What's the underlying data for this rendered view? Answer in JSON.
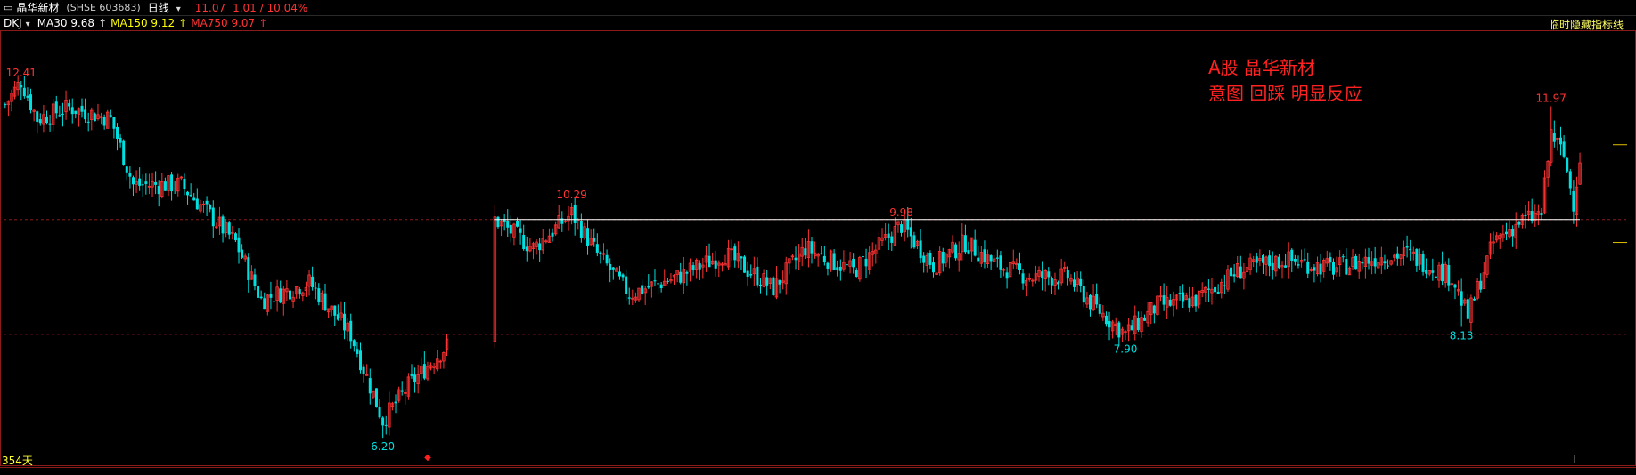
{
  "header": {
    "stock_name": "晶华新材",
    "code": "(SHSE 603683)",
    "period": "日线",
    "last_price": "11.07",
    "change": "1.01 / 10.04%"
  },
  "indicators": {
    "main": "DKJ",
    "ma30": "MA30 9.68",
    "ma150": "MA150 9.12",
    "ma750": "MA750 9.07",
    "hide_button": "临时隐藏指标线"
  },
  "annotation": {
    "line1": "A股 晶华新材",
    "line2": "意图 回踩 明显反应"
  },
  "footer": {
    "days": "354天"
  },
  "colors": {
    "up": "#ff3333",
    "down": "#00e0e0",
    "resistance": "#ffffff",
    "grid": "#8b1a1a"
  },
  "chart_data": {
    "type": "candlestick",
    "ylim": [
      5.8,
      13.2
    ],
    "dashed_levels": [
      10,
      8
    ],
    "resistance_level": 10,
    "price_labels": [
      {
        "label": "12.41",
        "bar": 5,
        "value": 12.41,
        "type": "high"
      },
      {
        "label": "6.20",
        "bar": 118,
        "value": 6.2,
        "type": "low"
      },
      {
        "label": "10.29",
        "bar": 177,
        "value": 10.29,
        "type": "high"
      },
      {
        "label": "9.98",
        "bar": 280,
        "value": 9.98,
        "type": "high"
      },
      {
        "label": "7.90",
        "bar": 350,
        "value": 7.9,
        "type": "low"
      },
      {
        "label": "8.13",
        "bar": 455,
        "value": 8.13,
        "type": "low"
      },
      {
        "label": "11.97",
        "bar": 483,
        "value": 11.97,
        "type": "high"
      }
    ],
    "anchors": [
      [
        0,
        12.0
      ],
      [
        5,
        12.41
      ],
      [
        10,
        11.75
      ],
      [
        20,
        11.95
      ],
      [
        33,
        11.75
      ],
      [
        40,
        10.6
      ],
      [
        55,
        10.6
      ],
      [
        72,
        9.6
      ],
      [
        80,
        8.6
      ],
      [
        95,
        8.9
      ],
      [
        108,
        8.0
      ],
      [
        118,
        6.5
      ],
      [
        126,
        7.1
      ],
      [
        138,
        7.8
      ],
      [
        145,
        8.6
      ],
      [
        150,
        8.0
      ],
      [
        153,
        10.0
      ],
      [
        165,
        9.5
      ],
      [
        177,
        10.1
      ],
      [
        185,
        9.4
      ],
      [
        195,
        8.7
      ],
      [
        210,
        9.0
      ],
      [
        225,
        9.4
      ],
      [
        240,
        8.8
      ],
      [
        250,
        9.5
      ],
      [
        265,
        9.1
      ],
      [
        280,
        9.9
      ],
      [
        290,
        9.2
      ],
      [
        300,
        9.6
      ],
      [
        310,
        9.2
      ],
      [
        320,
        9.0
      ],
      [
        332,
        9.0
      ],
      [
        340,
        8.5
      ],
      [
        350,
        8.0
      ],
      [
        360,
        8.5
      ],
      [
        372,
        8.6
      ],
      [
        385,
        9.1
      ],
      [
        400,
        9.3
      ],
      [
        415,
        9.15
      ],
      [
        430,
        9.35
      ],
      [
        438,
        9.4
      ],
      [
        452,
        9.0
      ],
      [
        457,
        8.3
      ],
      [
        465,
        9.6
      ],
      [
        473,
        9.95
      ],
      [
        480,
        10.1
      ],
      [
        483,
        11.5
      ],
      [
        487,
        11.1
      ],
      [
        490,
        10.3
      ],
      [
        492,
        11.07
      ]
    ]
  }
}
